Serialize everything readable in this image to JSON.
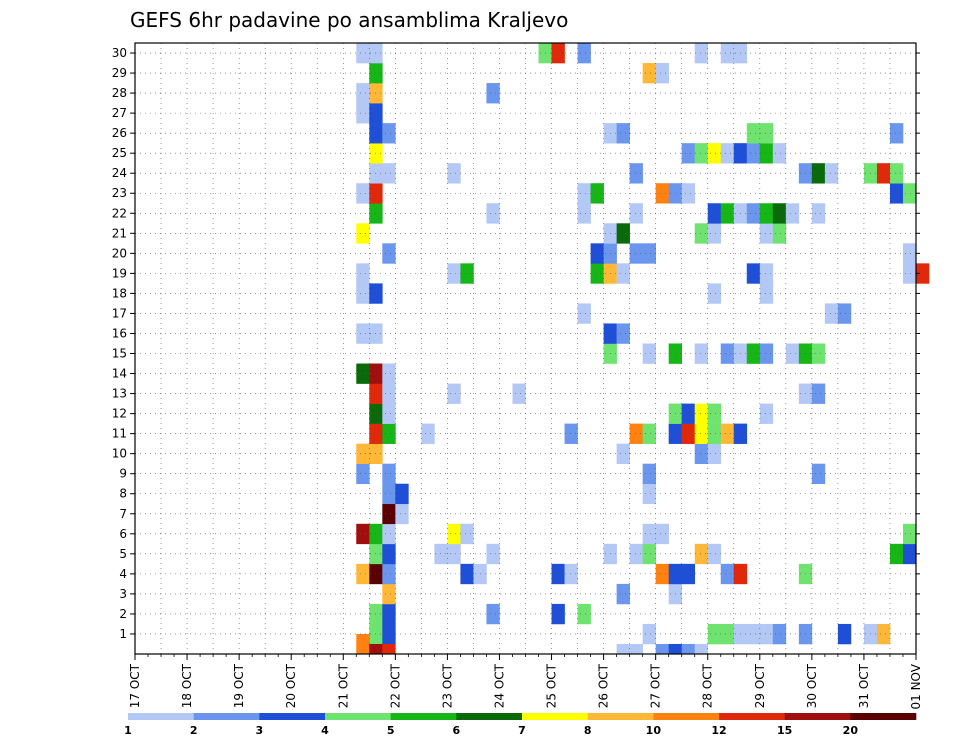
{
  "chart_data": {
    "type": "heatmap",
    "title": "GEFS 6hr padavine po ansamblima Kraljevo",
    "xlabel": "",
    "ylabel": "",
    "x_unit": "6h steps from 17 OCT 00Z",
    "x_range_days": [
      "17 OCT",
      "01 NOV"
    ],
    "x_ticks": [
      "17 OCT",
      "18 OCT",
      "19 OCT",
      "20 OCT",
      "21 OCT",
      "22 OCT",
      "23 OCT",
      "24 OCT",
      "25 OCT",
      "26 OCT",
      "27 OCT",
      "28 OCT",
      "29 OCT",
      "30 OCT",
      "31 OCT",
      "01 NOV"
    ],
    "y_ticks": [
      "1",
      "2",
      "3",
      "4",
      "5",
      "6",
      "7",
      "8",
      "9",
      "10",
      "11",
      "12",
      "13",
      "14",
      "15",
      "16",
      "17",
      "18",
      "19",
      "20",
      "21",
      "22",
      "23",
      "24",
      "25",
      "26",
      "27",
      "28",
      "29",
      "30"
    ],
    "ylim": [
      0,
      30
    ],
    "grid": true,
    "legend": {
      "placement": "bottom",
      "levels": [
        "1",
        "2",
        "3",
        "4",
        "5",
        "6",
        "7",
        "8",
        "10",
        "12",
        "15",
        "20"
      ],
      "colors": [
        "#b4c8f5",
        "#6b96ee",
        "#1e4fd6",
        "#6fe36f",
        "#15b615",
        "#0a6a0a",
        "#ffff00",
        "#ffb835",
        "#ff8210",
        "#e0280a",
        "#a00e0e",
        "#5a0000"
      ]
    },
    "cells": [
      [
        17,
        0,
        9
      ],
      [
        18,
        0,
        11
      ],
      [
        18,
        1,
        4
      ],
      [
        19,
        1,
        3
      ],
      [
        39,
        1,
        1
      ],
      [
        44,
        1,
        4
      ],
      [
        45,
        1,
        4
      ],
      [
        46,
        1,
        1
      ],
      [
        47,
        1,
        1
      ],
      [
        48,
        1,
        1
      ],
      [
        49,
        1,
        2
      ],
      [
        51,
        1,
        2
      ],
      [
        54,
        1,
        3
      ],
      [
        56,
        1,
        1
      ],
      [
        57,
        1,
        8
      ],
      [
        18,
        2,
        4
      ],
      [
        19,
        2,
        3
      ],
      [
        27,
        2,
        2
      ],
      [
        32,
        2,
        3
      ],
      [
        34,
        2,
        4
      ],
      [
        19,
        3,
        8
      ],
      [
        37,
        3,
        2
      ],
      [
        41,
        3,
        1
      ],
      [
        17,
        4,
        8
      ],
      [
        18,
        4,
        12
      ],
      [
        19,
        4,
        2
      ],
      [
        25,
        4,
        3
      ],
      [
        26,
        4,
        1
      ],
      [
        32,
        4,
        3
      ],
      [
        33,
        4,
        1
      ],
      [
        40,
        4,
        9
      ],
      [
        41,
        4,
        3
      ],
      [
        42,
        4,
        3
      ],
      [
        45,
        4,
        2
      ],
      [
        46,
        4,
        10
      ],
      [
        51,
        4,
        4
      ],
      [
        18,
        5,
        4
      ],
      [
        19,
        5,
        3
      ],
      [
        23,
        5,
        1
      ],
      [
        24,
        5,
        1
      ],
      [
        27,
        5,
        1
      ],
      [
        36,
        5,
        1
      ],
      [
        38,
        5,
        1
      ],
      [
        39,
        5,
        4
      ],
      [
        43,
        5,
        8
      ],
      [
        44,
        5,
        1
      ],
      [
        58,
        5,
        5
      ],
      [
        59,
        5,
        3
      ],
      [
        17,
        6,
        11
      ],
      [
        18,
        6,
        5
      ],
      [
        19,
        6,
        1
      ],
      [
        24,
        6,
        7
      ],
      [
        25,
        6,
        1
      ],
      [
        39,
        6,
        1
      ],
      [
        40,
        6,
        1
      ],
      [
        59,
        6,
        4
      ],
      [
        19,
        7,
        12
      ],
      [
        20,
        7,
        1
      ],
      [
        19,
        8,
        2
      ],
      [
        20,
        8,
        3
      ],
      [
        39,
        8,
        1
      ],
      [
        17,
        9,
        2
      ],
      [
        19,
        9,
        2
      ],
      [
        39,
        9,
        2
      ],
      [
        52,
        9,
        2
      ],
      [
        17,
        10,
        8
      ],
      [
        18,
        10,
        8
      ],
      [
        37,
        10,
        1
      ],
      [
        43,
        10,
        2
      ],
      [
        44,
        10,
        1
      ],
      [
        18,
        11,
        10
      ],
      [
        19,
        11,
        5
      ],
      [
        22,
        11,
        1
      ],
      [
        33,
        11,
        2
      ],
      [
        38,
        11,
        9
      ],
      [
        39,
        11,
        4
      ],
      [
        41,
        11,
        3
      ],
      [
        42,
        11,
        10
      ],
      [
        43,
        11,
        7
      ],
      [
        44,
        11,
        4
      ],
      [
        45,
        11,
        8
      ],
      [
        46,
        11,
        3
      ],
      [
        18,
        12,
        6
      ],
      [
        19,
        12,
        1
      ],
      [
        41,
        12,
        4
      ],
      [
        42,
        12,
        3
      ],
      [
        43,
        12,
        7
      ],
      [
        44,
        12,
        4
      ],
      [
        48,
        12,
        1
      ],
      [
        18,
        13,
        10
      ],
      [
        19,
        13,
        1
      ],
      [
        24,
        13,
        1
      ],
      [
        29,
        13,
        1
      ],
      [
        51,
        13,
        1
      ],
      [
        52,
        13,
        2
      ],
      [
        17,
        14,
        6
      ],
      [
        18,
        14,
        11
      ],
      [
        19,
        14,
        1
      ],
      [
        36,
        15,
        4
      ],
      [
        39,
        15,
        1
      ],
      [
        41,
        15,
        5
      ],
      [
        43,
        15,
        1
      ],
      [
        45,
        15,
        2
      ],
      [
        46,
        15,
        1
      ],
      [
        47,
        15,
        5
      ],
      [
        48,
        15,
        2
      ],
      [
        50,
        15,
        1
      ],
      [
        51,
        15,
        5
      ],
      [
        52,
        15,
        4
      ],
      [
        17,
        16,
        1
      ],
      [
        18,
        16,
        1
      ],
      [
        36,
        16,
        3
      ],
      [
        37,
        16,
        2
      ],
      [
        34,
        17,
        1
      ],
      [
        53,
        17,
        1
      ],
      [
        54,
        17,
        2
      ],
      [
        17,
        18,
        1
      ],
      [
        18,
        18,
        3
      ],
      [
        44,
        18,
        1
      ],
      [
        48,
        18,
        1
      ],
      [
        17,
        19,
        1
      ],
      [
        24,
        19,
        1
      ],
      [
        25,
        19,
        5
      ],
      [
        35,
        19,
        5
      ],
      [
        36,
        19,
        8
      ],
      [
        37,
        19,
        1
      ],
      [
        47,
        19,
        3
      ],
      [
        48,
        19,
        1
      ],
      [
        59,
        19,
        1
      ],
      [
        60,
        19,
        10
      ],
      [
        19,
        20,
        2
      ],
      [
        35,
        20,
        3
      ],
      [
        36,
        20,
        2
      ],
      [
        38,
        20,
        2
      ],
      [
        39,
        20,
        2
      ],
      [
        59,
        20,
        1
      ],
      [
        17,
        21,
        7
      ],
      [
        36,
        21,
        1
      ],
      [
        37,
        21,
        6
      ],
      [
        43,
        21,
        4
      ],
      [
        44,
        21,
        1
      ],
      [
        48,
        21,
        1
      ],
      [
        49,
        21,
        4
      ],
      [
        18,
        22,
        5
      ],
      [
        27,
        22,
        1
      ],
      [
        34,
        22,
        1
      ],
      [
        38,
        22,
        1
      ],
      [
        44,
        22,
        3
      ],
      [
        45,
        22,
        5
      ],
      [
        46,
        22,
        1
      ],
      [
        47,
        22,
        2
      ],
      [
        48,
        22,
        5
      ],
      [
        49,
        22,
        6
      ],
      [
        50,
        22,
        1
      ],
      [
        52,
        22,
        1
      ],
      [
        17,
        23,
        1
      ],
      [
        18,
        23,
        10
      ],
      [
        34,
        23,
        1
      ],
      [
        35,
        23,
        5
      ],
      [
        40,
        23,
        9
      ],
      [
        41,
        23,
        2
      ],
      [
        42,
        23,
        1
      ],
      [
        58,
        23,
        3
      ],
      [
        59,
        23,
        4
      ],
      [
        18,
        24,
        1
      ],
      [
        19,
        24,
        1
      ],
      [
        24,
        24,
        1
      ],
      [
        38,
        24,
        2
      ],
      [
        51,
        24,
        2
      ],
      [
        52,
        24,
        6
      ],
      [
        53,
        24,
        1
      ],
      [
        56,
        24,
        4
      ],
      [
        57,
        24,
        10
      ],
      [
        58,
        24,
        4
      ],
      [
        18,
        25,
        7
      ],
      [
        42,
        25,
        2
      ],
      [
        43,
        25,
        4
      ],
      [
        44,
        25,
        7
      ],
      [
        45,
        25,
        1
      ],
      [
        46,
        25,
        3
      ],
      [
        47,
        25,
        2
      ],
      [
        48,
        25,
        5
      ],
      [
        49,
        25,
        1
      ],
      [
        18,
        26,
        3
      ],
      [
        19,
        26,
        2
      ],
      [
        36,
        26,
        1
      ],
      [
        37,
        26,
        2
      ],
      [
        47,
        26,
        4
      ],
      [
        48,
        26,
        4
      ],
      [
        58,
        26,
        2
      ],
      [
        17,
        27,
        1
      ],
      [
        18,
        27,
        3
      ],
      [
        17,
        28,
        1
      ],
      [
        18,
        28,
        8
      ],
      [
        27,
        28,
        2
      ],
      [
        18,
        29,
        5
      ],
      [
        39,
        29,
        8
      ],
      [
        40,
        29,
        1
      ],
      [
        17,
        30,
        1
      ],
      [
        18,
        30,
        1
      ],
      [
        31,
        30,
        4
      ],
      [
        32,
        30,
        10
      ],
      [
        34,
        30,
        2
      ],
      [
        43,
        30,
        1
      ],
      [
        45,
        30,
        1
      ],
      [
        46,
        30,
        1
      ],
      [
        18,
        -1,
        11
      ],
      [
        19,
        -1,
        10
      ],
      [
        37,
        -1,
        1
      ],
      [
        38,
        -1,
        1
      ],
      [
        40,
        -1,
        2
      ],
      [
        41,
        -1,
        3
      ],
      [
        42,
        -1,
        2
      ],
      [
        43,
        -1,
        1
      ]
    ]
  }
}
